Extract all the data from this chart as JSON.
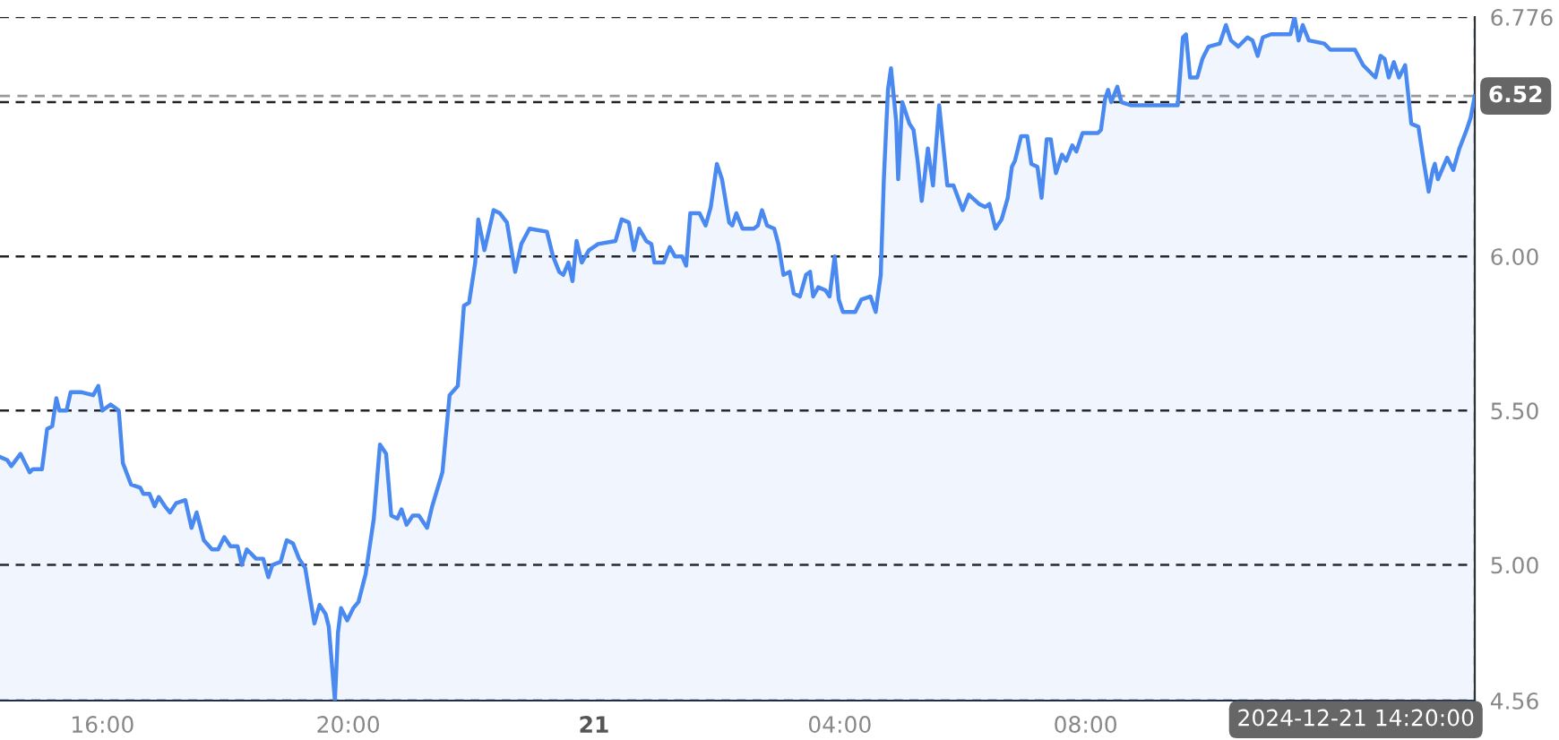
{
  "chart_data": {
    "type": "area",
    "x": [
      "2024-12-20T14:20",
      "2024-12-20T14:27",
      "2024-12-20T14:31",
      "2024-12-20T14:40",
      "2024-12-20T14:49",
      "2024-12-20T14:52",
      "2024-12-20T15:01",
      "2024-12-20T15:06",
      "2024-12-20T15:11",
      "2024-12-20T15:15",
      "2024-12-20T15:18",
      "2024-12-20T15:25",
      "2024-12-20T15:29",
      "2024-12-20T15:39",
      "2024-12-20T15:51",
      "2024-12-20T15:56",
      "2024-12-20T16:00",
      "2024-12-20T16:08",
      "2024-12-20T16:16",
      "2024-12-20T16:20",
      "2024-12-20T16:28",
      "2024-12-20T16:37",
      "2024-12-20T16:40",
      "2024-12-20T16:46",
      "2024-12-20T16:51",
      "2024-12-20T16:55",
      "2024-12-20T17:01",
      "2024-12-20T17:06",
      "2024-12-20T17:12",
      "2024-12-20T17:21",
      "2024-12-20T17:27",
      "2024-12-20T17:32",
      "2024-12-20T17:39",
      "2024-12-20T17:47",
      "2024-12-20T17:53",
      "2024-12-20T17:59",
      "2024-12-20T18:05",
      "2024-12-20T18:12",
      "2024-12-20T18:16",
      "2024-12-20T18:21",
      "2024-12-20T18:30",
      "2024-12-20T18:37",
      "2024-12-20T18:42",
      "2024-12-20T18:46",
      "2024-12-20T18:54",
      "2024-12-20T19:00",
      "2024-12-20T19:06",
      "2024-12-20T19:12",
      "2024-12-20T19:18",
      "2024-12-20T19:24",
      "2024-12-20T19:27",
      "2024-12-20T19:32",
      "2024-12-20T19:38",
      "2024-12-20T19:41",
      "2024-12-20T19:47",
      "2024-12-20T19:50",
      "2024-12-20T19:53",
      "2024-12-20T19:59",
      "2024-12-20T20:05",
      "2024-12-20T20:10",
      "2024-12-20T20:17",
      "2024-12-20T20:25",
      "2024-12-20T20:31",
      "2024-12-20T20:37",
      "2024-12-20T20:42",
      "2024-12-20T20:48",
      "2024-12-20T20:52",
      "2024-12-20T20:57",
      "2024-12-20T21:03",
      "2024-12-20T21:09",
      "2024-12-20T21:17",
      "2024-12-20T21:22",
      "2024-12-20T21:32",
      "2024-12-20T21:39",
      "2024-12-20T21:47",
      "2024-12-20T21:53",
      "2024-12-20T21:58",
      "2024-12-20T22:04",
      "2024-12-20T22:07",
      "2024-12-20T22:13",
      "2024-12-20T22:22",
      "2024-12-20T22:28",
      "2024-12-20T22:35",
      "2024-12-20T22:43",
      "2024-12-20T22:49",
      "2024-12-20T22:57",
      "2024-12-20T23:14",
      "2024-12-20T23:20",
      "2024-12-20T23:26",
      "2024-12-20T23:30",
      "2024-12-20T23:35",
      "2024-12-20T23:39",
      "2024-12-20T23:43",
      "2024-12-20T23:48",
      "2024-12-20T23:55",
      "2024-12-21T00:04",
      "2024-12-21T00:21",
      "2024-12-21T00:27",
      "2024-12-21T00:34",
      "2024-12-21T00:39",
      "2024-12-21T00:44",
      "2024-12-21T00:51",
      "2024-12-21T00:56",
      "2024-12-21T00:59",
      "2024-12-21T01:08",
      "2024-12-21T01:14",
      "2024-12-21T01:19",
      "2024-12-21T01:26",
      "2024-12-21T01:30",
      "2024-12-21T01:34",
      "2024-12-21T01:43",
      "2024-12-21T01:49",
      "2024-12-21T01:54",
      "2024-12-21T02:00",
      "2024-12-21T02:05",
      "2024-12-21T02:12",
      "2024-12-21T02:15",
      "2024-12-21T02:19",
      "2024-12-21T02:25",
      "2024-12-21T02:36",
      "2024-12-21T02:40",
      "2024-12-21T02:44",
      "2024-12-21T02:49",
      "2024-12-21T02:56",
      "2024-12-21T03:00",
      "2024-12-21T03:05",
      "2024-12-21T03:11",
      "2024-12-21T03:15",
      "2024-12-21T03:21",
      "2024-12-21T03:27",
      "2024-12-21T03:31",
      "2024-12-21T03:34",
      "2024-12-21T03:39",
      "2024-12-21T03:46",
      "2024-12-21T03:50",
      "2024-12-21T03:55",
      "2024-12-21T03:59",
      "2024-12-21T04:03",
      "2024-12-21T04:15",
      "2024-12-21T04:21",
      "2024-12-21T04:30",
      "2024-12-21T04:35",
      "2024-12-21T04:40",
      "2024-12-21T04:43",
      "2024-12-21T04:47",
      "2024-12-21T04:50",
      "2024-12-21T04:55",
      "2024-12-21T04:57",
      "2024-12-21T05:01",
      "2024-12-21T05:08",
      "2024-12-21T05:12",
      "2024-12-21T05:16",
      "2024-12-21T05:20",
      "2024-12-21T05:26",
      "2024-12-21T05:31",
      "2024-12-21T05:37",
      "2024-12-21T05:41",
      "2024-12-21T05:45",
      "2024-12-21T05:51",
      "2024-12-21T06:00",
      "2024-12-21T06:06",
      "2024-12-21T06:16",
      "2024-12-21T06:22",
      "2024-12-21T06:26",
      "2024-12-21T06:32",
      "2024-12-21T06:38",
      "2024-12-21T06:44",
      "2024-12-21T06:48",
      "2024-12-21T06:51",
      "2024-12-21T06:57",
      "2024-12-21T07:03",
      "2024-12-21T07:07",
      "2024-12-21T07:13",
      "2024-12-21T07:17",
      "2024-12-21T07:22",
      "2024-12-21T07:26",
      "2024-12-21T07:31",
      "2024-12-21T07:37",
      "2024-12-21T07:41",
      "2024-12-21T07:47",
      "2024-12-21T07:51",
      "2024-12-21T07:57",
      "2024-12-21T08:12",
      "2024-12-21T08:15",
      "2024-12-21T08:19",
      "2024-12-21T08:22",
      "2024-12-21T08:25",
      "2024-12-21T08:31",
      "2024-12-21T08:35",
      "2024-12-21T08:44",
      "2024-12-21T09:30",
      "2024-12-21T09:35",
      "2024-12-21T09:38",
      "2024-12-21T09:42",
      "2024-12-21T09:49",
      "2024-12-21T09:54",
      "2024-12-21T10:00",
      "2024-12-21T10:11",
      "2024-12-21T10:17",
      "2024-12-21T10:22",
      "2024-12-21T10:29",
      "2024-12-21T10:38",
      "2024-12-21T10:43",
      "2024-12-21T10:48",
      "2024-12-21T10:53",
      "2024-12-21T11:01",
      "2024-12-21T11:20",
      "2024-12-21T11:24",
      "2024-12-21T11:28",
      "2024-12-21T11:32",
      "2024-12-21T11:38",
      "2024-12-21T11:53",
      "2024-12-21T11:59",
      "2024-12-21T12:23",
      "2024-12-21T12:31",
      "2024-12-21T12:43",
      "2024-12-21T12:48",
      "2024-12-21T12:52",
      "2024-12-21T12:56",
      "2024-12-21T13:01",
      "2024-12-21T13:06",
      "2024-12-21T13:12",
      "2024-12-21T13:18",
      "2024-12-21T13:25",
      "2024-12-21T13:30",
      "2024-12-21T13:35",
      "2024-12-21T13:39",
      "2024-12-21T13:41",
      "2024-12-21T13:44",
      "2024-12-21T13:53",
      "2024-12-21T13:59",
      "2024-12-21T14:05",
      "2024-12-21T14:12",
      "2024-12-21T14:16",
      "2024-12-21T14:20"
    ],
    "series": [
      {
        "color": "#4a8af0",
        "values": [
          5.35,
          5.34,
          5.32,
          5.36,
          5.3,
          5.31,
          5.31,
          5.44,
          5.45,
          5.54,
          5.5,
          5.5,
          5.56,
          5.56,
          5.55,
          5.58,
          5.5,
          5.52,
          5.5,
          5.33,
          5.26,
          5.25,
          5.23,
          5.23,
          5.19,
          5.22,
          5.19,
          5.17,
          5.2,
          5.21,
          5.12,
          5.17,
          5.08,
          5.05,
          5.05,
          5.09,
          5.06,
          5.06,
          5.0,
          5.05,
          5.02,
          5.02,
          4.96,
          5.0,
          5.01,
          5.08,
          5.07,
          5.02,
          4.99,
          4.87,
          4.81,
          4.87,
          4.84,
          4.8,
          4.56,
          4.78,
          4.86,
          4.82,
          4.86,
          4.88,
          4.97,
          5.15,
          5.39,
          5.36,
          5.16,
          5.15,
          5.18,
          5.13,
          5.16,
          5.16,
          5.12,
          5.19,
          5.3,
          5.55,
          5.58,
          5.84,
          5.85,
          5.98,
          6.12,
          6.02,
          6.15,
          6.14,
          6.11,
          5.95,
          6.04,
          6.09,
          6.08,
          6.0,
          5.95,
          5.94,
          5.98,
          5.92,
          6.05,
          5.98,
          6.02,
          6.04,
          6.05,
          6.12,
          6.11,
          6.02,
          6.09,
          6.05,
          6.04,
          5.98,
          5.98,
          6.03,
          6.0,
          6.0,
          5.97,
          6.14,
          6.14,
          6.1,
          6.16,
          6.3,
          6.25,
          6.11,
          6.1,
          6.14,
          6.09,
          6.09,
          6.1,
          6.15,
          6.1,
          6.09,
          6.04,
          5.94,
          5.95,
          5.88,
          5.87,
          5.94,
          5.95,
          5.87,
          5.9,
          5.89,
          5.87,
          6.0,
          5.86,
          5.82,
          5.82,
          5.86,
          5.87,
          5.82,
          5.94,
          6.25,
          6.54,
          6.61,
          6.44,
          6.25,
          6.5,
          6.43,
          6.41,
          6.31,
          6.18,
          6.35,
          6.23,
          6.49,
          6.36,
          6.23,
          6.23,
          6.15,
          6.2,
          6.17,
          6.16,
          6.17,
          6.09,
          6.12,
          6.19,
          6.29,
          6.31,
          6.39,
          6.39,
          6.3,
          6.29,
          6.19,
          6.38,
          6.38,
          6.27,
          6.33,
          6.31,
          6.36,
          6.34,
          6.4,
          6.4,
          6.41,
          6.51,
          6.54,
          6.5,
          6.55,
          6.5,
          6.49,
          6.49,
          6.71,
          6.72,
          6.58,
          6.58,
          6.64,
          6.68,
          6.69,
          6.75,
          6.7,
          6.68,
          6.71,
          6.7,
          6.65,
          6.71,
          6.72,
          6.72,
          6.776,
          6.7,
          6.75,
          6.7,
          6.69,
          6.67,
          6.67,
          6.62,
          6.58,
          6.65,
          6.64,
          6.58,
          6.63,
          6.58,
          6.62,
          6.43,
          6.42,
          6.31,
          6.21,
          6.28,
          6.3,
          6.25,
          6.32,
          6.28,
          6.35,
          6.41,
          6.45,
          6.52
        ]
      }
    ],
    "xlim": [
      "2024-12-20T14:20",
      "2024-12-21T14:20"
    ],
    "xticks": [
      {
        "value": "2024-12-20T16:00",
        "label": "16:00"
      },
      {
        "value": "2024-12-20T20:00",
        "label": "20:00"
      },
      {
        "value": "2024-12-21T00:00",
        "label": "21"
      },
      {
        "value": "2024-12-21T04:00",
        "label": "04:00"
      },
      {
        "value": "2024-12-21T08:00",
        "label": "08:00"
      }
    ],
    "ylim": [
      4.56,
      6.776
    ],
    "yticks": [
      4.56,
      {
        "value": 5.0,
        "label": "5.00"
      },
      {
        "value": 5.5,
        "label": "5.50"
      },
      {
        "value": 6.0,
        "label": "6.00"
      },
      {
        "value": 6.5,
        "label": null
      },
      6.776
    ],
    "grid": "y",
    "line_style": "solid",
    "ref_lines": [
      {
        "axis": "y",
        "value": 6.52,
        "label": "6.52",
        "color": "#999999",
        "line_style": "dashed"
      },
      {
        "axis": "x",
        "value": "2024-12-21T14:20",
        "label": "2024-12-21 14:20:00",
        "color": "#8ec0f5",
        "line_style": "dashed"
      }
    ]
  }
}
